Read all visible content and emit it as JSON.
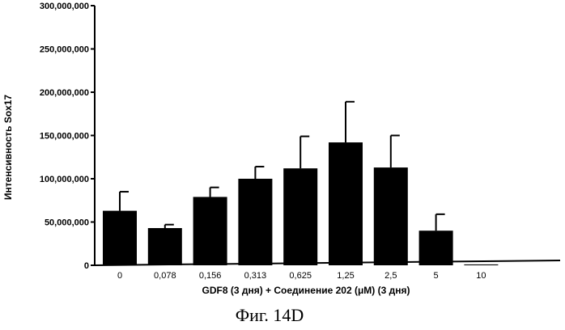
{
  "chart_data": {
    "type": "bar",
    "title": "",
    "xlabel": "GDF8 (3 дня) + Соединение 202 (μM) (3 дня)",
    "ylabel": "Интенсивность Sox17",
    "ylim": [
      0,
      300000000
    ],
    "yticks": [
      0,
      50000000,
      100000000,
      150000000,
      200000000,
      250000000,
      300000000
    ],
    "ytick_labels": [
      "0",
      "50,000,000",
      "100,000,000",
      "150,000,000",
      "200,000,000",
      "250,000,000",
      "300,000,000"
    ],
    "categories": [
      "0",
      "0,078",
      "0,156",
      "0,313",
      "0,625",
      "1,25",
      "2,5",
      "5",
      "10"
    ],
    "values": [
      63000000,
      43000000,
      79000000,
      100000000,
      112000000,
      142000000,
      113000000,
      40000000,
      1000000
    ],
    "errors": [
      22000000,
      4000000,
      11000000,
      14000000,
      37000000,
      47000000,
      37000000,
      19000000,
      0
    ],
    "bar_color": "#000000",
    "grid": false,
    "caption": "Фиг. 14D"
  }
}
